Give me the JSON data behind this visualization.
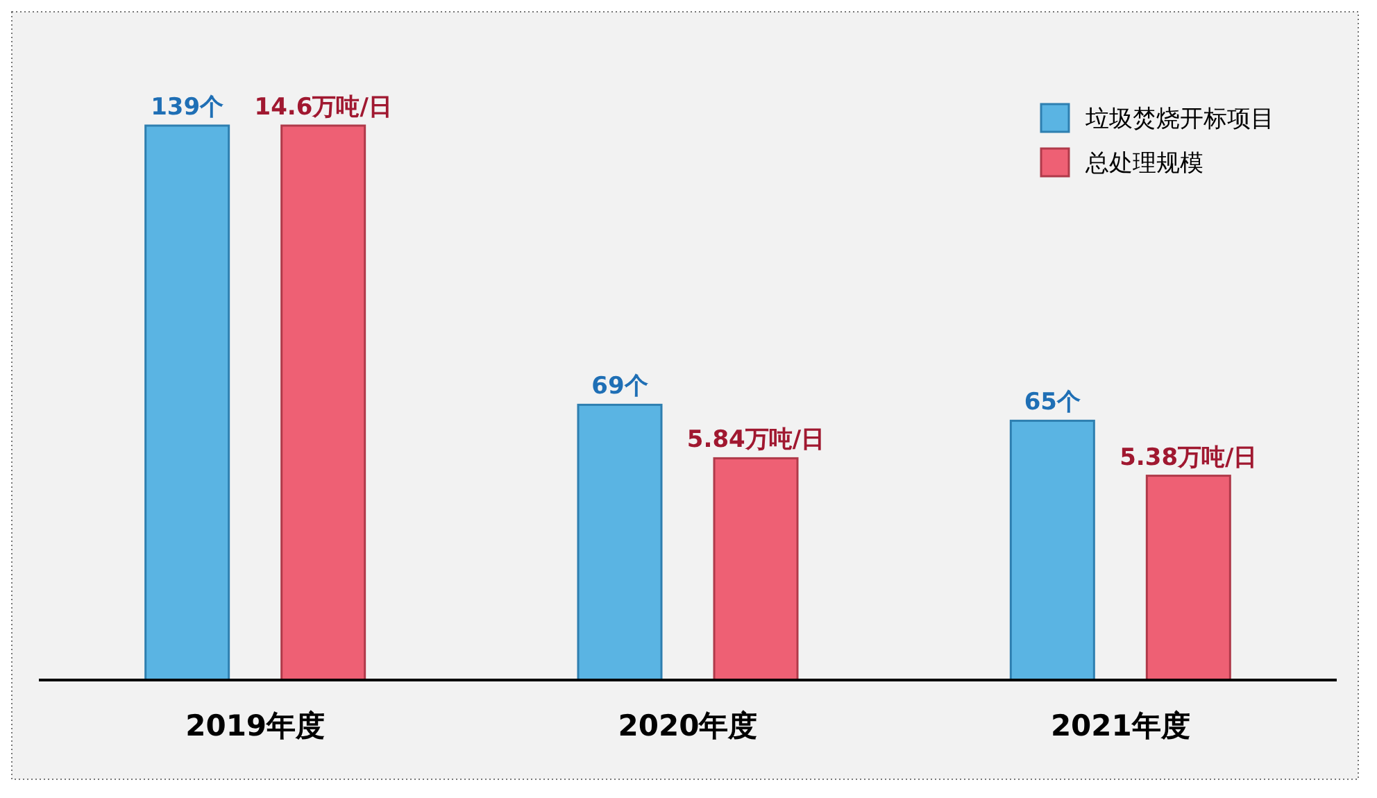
{
  "chart_data": {
    "type": "bar",
    "categories": [
      "2019年度",
      "2020年度",
      "2021年度"
    ],
    "series": [
      {
        "name": "垃圾焚烧开标项目",
        "color": "#5ab4e3",
        "values": [
          139,
          69,
          65
        ],
        "value_labels": [
          "139个",
          "69个",
          "65个"
        ]
      },
      {
        "name": "总处理规模",
        "color": "#ee6074",
        "axis": "y2",
        "values": [
          14.6,
          5.84,
          5.38
        ],
        "value_labels": [
          "14.6万吨/日",
          "5.84万吨/日",
          "5.38万吨/日"
        ]
      }
    ],
    "tick_labels": "x",
    "legend": "top right"
  }
}
